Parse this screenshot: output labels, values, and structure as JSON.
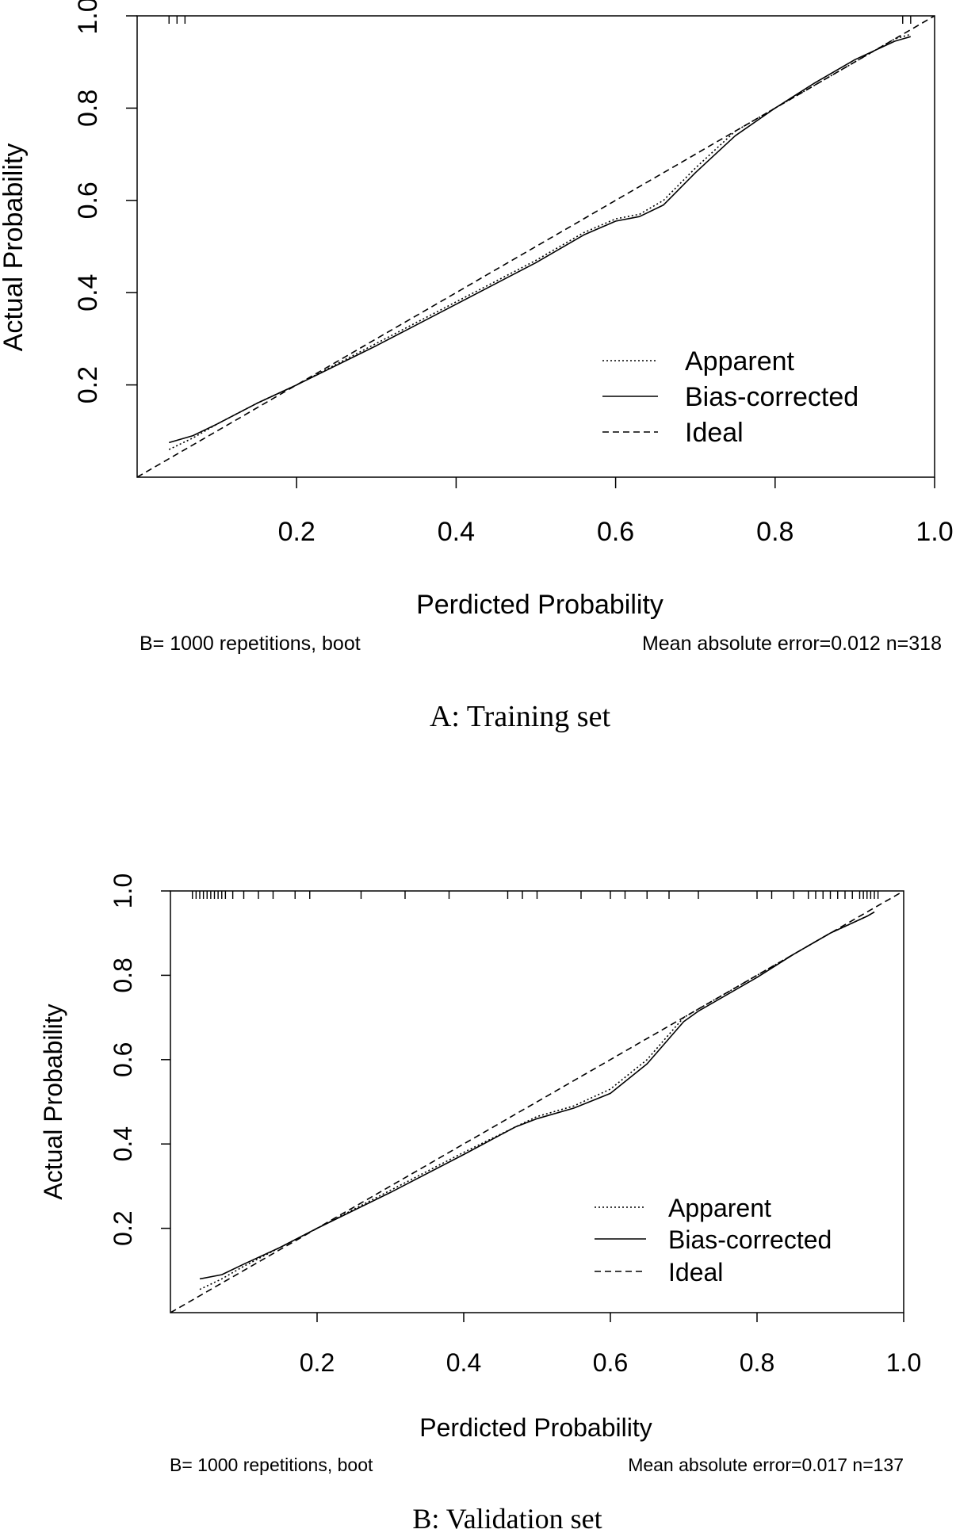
{
  "chart_data": [
    {
      "type": "line",
      "panel_caption": "A: Training set",
      "xlabel": "Perdicted Probability",
      "ylabel": "Actual Probability",
      "xlim": [
        0,
        1.0
      ],
      "ylim": [
        0,
        1.0
      ],
      "x_ticks": [
        "0.2",
        "0.4",
        "0.6",
        "0.8",
        "1.0"
      ],
      "y_ticks": [
        "0.2",
        "0.4",
        "0.6",
        "0.8",
        "1.0"
      ],
      "footnote_left": "B= 1000 repetitions, boot",
      "footnote_right": "Mean absolute error=0.012 n=318",
      "legend_position": "bottom-right",
      "series": [
        {
          "name": "Apparent",
          "style": "dotted",
          "x": [
            0.04,
            0.07,
            0.1,
            0.15,
            0.2,
            0.3,
            0.4,
            0.5,
            0.56,
            0.6,
            0.63,
            0.66,
            0.7,
            0.75,
            0.8,
            0.85,
            0.9,
            0.95,
            0.97
          ],
          "y": [
            0.06,
            0.085,
            0.115,
            0.16,
            0.2,
            0.29,
            0.38,
            0.47,
            0.53,
            0.56,
            0.57,
            0.6,
            0.67,
            0.75,
            0.8,
            0.85,
            0.9,
            0.95,
            0.96
          ]
        },
        {
          "name": "Bias-corrected",
          "style": "solid",
          "x": [
            0.04,
            0.07,
            0.1,
            0.15,
            0.2,
            0.3,
            0.4,
            0.5,
            0.56,
            0.6,
            0.63,
            0.66,
            0.7,
            0.75,
            0.8,
            0.85,
            0.9,
            0.95,
            0.97
          ],
          "y": [
            0.075,
            0.09,
            0.115,
            0.16,
            0.2,
            0.285,
            0.375,
            0.465,
            0.525,
            0.555,
            0.565,
            0.59,
            0.66,
            0.74,
            0.8,
            0.855,
            0.905,
            0.945,
            0.955
          ]
        },
        {
          "name": "Ideal",
          "style": "dashed",
          "x": [
            0,
            1.0
          ],
          "y": [
            0,
            1.0
          ]
        }
      ],
      "rug_top": [
        0.04,
        0.05,
        0.06,
        0.96,
        0.97
      ]
    },
    {
      "type": "line",
      "panel_caption": "B: Validation set",
      "xlabel": "Perdicted Probability",
      "ylabel": "Actual Probability",
      "xlim": [
        0,
        1.0
      ],
      "ylim": [
        0,
        1.0
      ],
      "x_ticks": [
        "0.2",
        "0.4",
        "0.6",
        "0.8",
        "1.0"
      ],
      "y_ticks": [
        "0.2",
        "0.4",
        "0.6",
        "0.8",
        "1.0"
      ],
      "footnote_left": "B= 1000 repetitions, boot",
      "footnote_right": "Mean absolute error=0.017 n=137",
      "legend_position": "bottom-right",
      "series": [
        {
          "name": "Apparent",
          "style": "dotted",
          "x": [
            0.04,
            0.07,
            0.1,
            0.15,
            0.2,
            0.3,
            0.4,
            0.47,
            0.5,
            0.55,
            0.6,
            0.65,
            0.7,
            0.72,
            0.8,
            0.85,
            0.9,
            0.95,
            0.96
          ],
          "y": [
            0.055,
            0.08,
            0.11,
            0.155,
            0.2,
            0.29,
            0.38,
            0.44,
            0.465,
            0.49,
            0.53,
            0.6,
            0.7,
            0.72,
            0.8,
            0.85,
            0.9,
            0.94,
            0.95
          ]
        },
        {
          "name": "Bias-corrected",
          "style": "solid",
          "x": [
            0.04,
            0.07,
            0.1,
            0.15,
            0.2,
            0.3,
            0.4,
            0.47,
            0.5,
            0.55,
            0.6,
            0.65,
            0.7,
            0.72,
            0.8,
            0.85,
            0.9,
            0.95,
            0.96
          ],
          "y": [
            0.08,
            0.09,
            0.115,
            0.155,
            0.2,
            0.285,
            0.375,
            0.44,
            0.46,
            0.485,
            0.52,
            0.59,
            0.69,
            0.715,
            0.795,
            0.85,
            0.9,
            0.94,
            0.95
          ]
        },
        {
          "name": "Ideal",
          "style": "dashed",
          "x": [
            0,
            1.0
          ],
          "y": [
            0,
            1.0
          ]
        }
      ],
      "rug_top": [
        0.03,
        0.035,
        0.04,
        0.045,
        0.05,
        0.055,
        0.06,
        0.065,
        0.07,
        0.075,
        0.085,
        0.1,
        0.12,
        0.14,
        0.17,
        0.19,
        0.26,
        0.32,
        0.38,
        0.46,
        0.48,
        0.5,
        0.56,
        0.6,
        0.62,
        0.65,
        0.68,
        0.72,
        0.8,
        0.82,
        0.85,
        0.87,
        0.88,
        0.89,
        0.9,
        0.91,
        0.92,
        0.93,
        0.94,
        0.945,
        0.95,
        0.955,
        0.96,
        0.965
      ]
    }
  ]
}
